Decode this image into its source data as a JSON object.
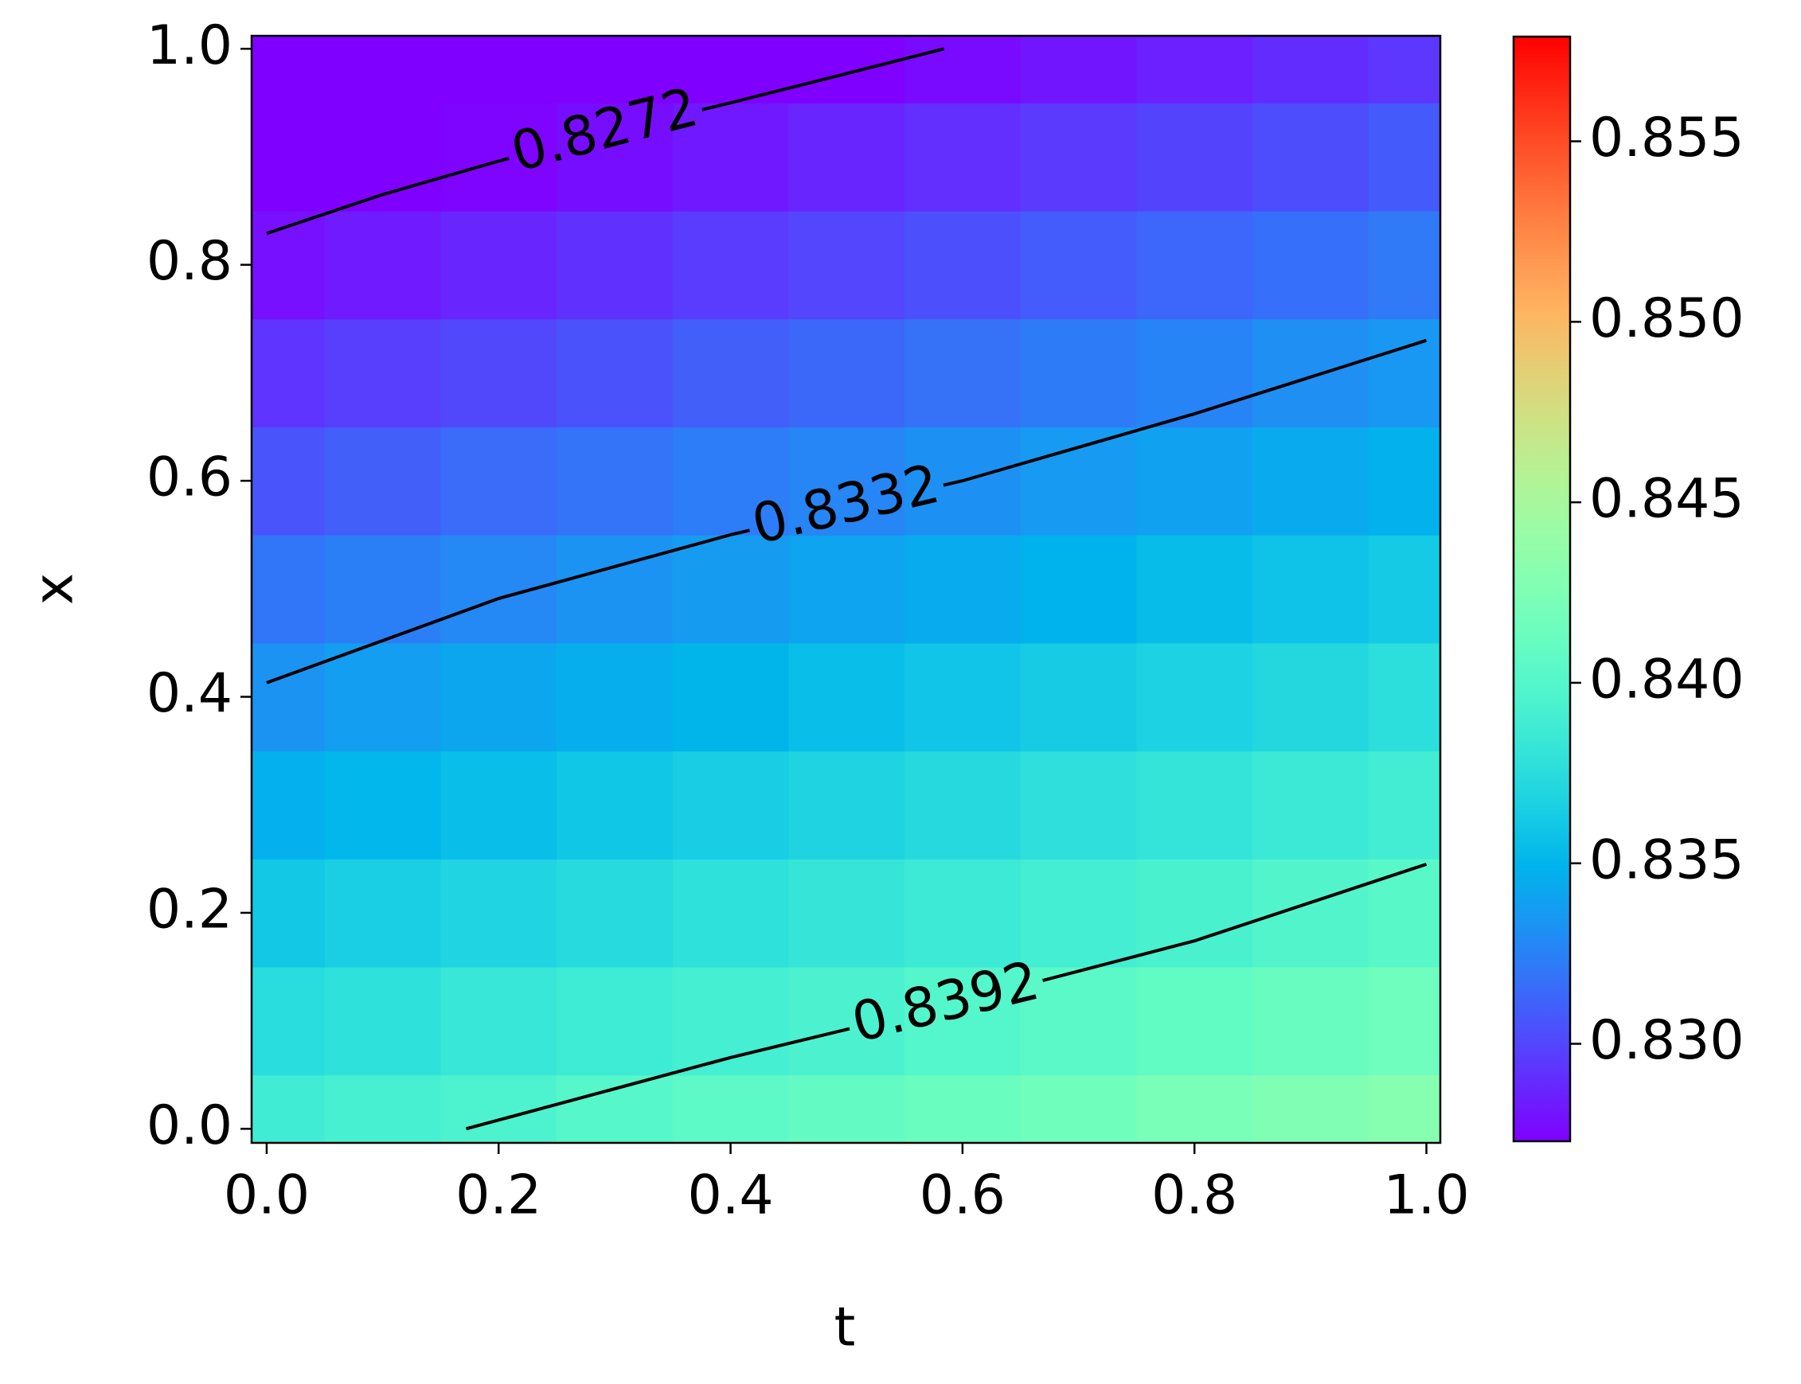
{
  "chart_data": {
    "type": "heatmap",
    "x_label": "t",
    "y_label": "x",
    "colormap": "rainbow",
    "x": [
      0,
      0.1,
      0.2,
      0.3,
      0.4,
      0.5,
      0.6,
      0.7,
      0.8,
      0.9,
      1.0
    ],
    "y": [
      0,
      0.1,
      0.2,
      0.3,
      0.4,
      0.5,
      0.6,
      0.7,
      0.8,
      0.9,
      1.0
    ],
    "values": [
      [
        0.8388,
        0.8392,
        0.8396,
        0.8401,
        0.8405,
        0.8409,
        0.8413,
        0.8417,
        0.8422,
        0.8426,
        0.843
      ],
      [
        0.8374,
        0.8378,
        0.8383,
        0.8387,
        0.8391,
        0.8395,
        0.84,
        0.8404,
        0.8408,
        0.8412,
        0.8416
      ],
      [
        0.8361,
        0.8365,
        0.8369,
        0.8373,
        0.8378,
        0.8382,
        0.8386,
        0.839,
        0.8394,
        0.8399,
        0.8403
      ],
      [
        0.8347,
        0.8351,
        0.8355,
        0.836,
        0.8364,
        0.8368,
        0.8372,
        0.8377,
        0.8381,
        0.8385,
        0.8389
      ],
      [
        0.8333,
        0.8338,
        0.8342,
        0.8346,
        0.835,
        0.8355,
        0.8359,
        0.8363,
        0.8367,
        0.8371,
        0.8376
      ],
      [
        0.832,
        0.8324,
        0.8328,
        0.8333,
        0.8337,
        0.8341,
        0.8345,
        0.8349,
        0.8354,
        0.8358,
        0.8362
      ],
      [
        0.8306,
        0.831,
        0.8315,
        0.8319,
        0.8323,
        0.8327,
        0.8332,
        0.8336,
        0.834,
        0.8344,
        0.8348
      ],
      [
        0.8293,
        0.8297,
        0.8301,
        0.8305,
        0.831,
        0.8314,
        0.8318,
        0.8322,
        0.8326,
        0.8331,
        0.8335
      ],
      [
        0.8279,
        0.8283,
        0.8287,
        0.8292,
        0.8296,
        0.83,
        0.8304,
        0.8309,
        0.8313,
        0.8317,
        0.8321
      ],
      [
        0.8265,
        0.827,
        0.8274,
        0.8278,
        0.8282,
        0.8287,
        0.8291,
        0.8295,
        0.8299,
        0.8303,
        0.8308
      ],
      [
        0.8252,
        0.8256,
        0.826,
        0.8264,
        0.8269,
        0.8273,
        0.8277,
        0.8281,
        0.8285,
        0.829,
        0.8294
      ]
    ],
    "clim": [
      0.8273,
      0.8579
    ],
    "cticks": [
      {
        "value": 0.83,
        "label": "0.830"
      },
      {
        "value": 0.835,
        "label": "0.835"
      },
      {
        "value": 0.84,
        "label": "0.840"
      },
      {
        "value": 0.845,
        "label": "0.845"
      },
      {
        "value": 0.85,
        "label": "0.850"
      },
      {
        "value": 0.855,
        "label": "0.855"
      }
    ],
    "xlim": [
      -0.013,
      1.012
    ],
    "ylim": [
      -0.013,
      1.012
    ],
    "xticks": [
      {
        "value": 0,
        "label": "0.0"
      },
      {
        "value": 0.2,
        "label": "0.2"
      },
      {
        "value": 0.4,
        "label": "0.4"
      },
      {
        "value": 0.6,
        "label": "0.6"
      },
      {
        "value": 0.8,
        "label": "0.8"
      },
      {
        "value": 1,
        "label": "1.0"
      }
    ],
    "yticks": [
      {
        "value": 0,
        "label": "0.0"
      },
      {
        "value": 0.2,
        "label": "0.2"
      },
      {
        "value": 0.4,
        "label": "0.4"
      },
      {
        "value": 0.6,
        "label": "0.6"
      },
      {
        "value": 0.8,
        "label": "0.8"
      },
      {
        "value": 1,
        "label": "1.0"
      }
    ],
    "contours": [
      {
        "level": 0.8272,
        "color": "#000000",
        "x": [
          0,
          0.1,
          0.2,
          0.3,
          0.4,
          0.5,
          0.584
        ],
        "y": [
          0.829,
          0.865,
          0.896,
          0.924,
          0.95,
          0.977,
          1.0
        ]
      },
      {
        "level": 0.8332,
        "color": "#000000",
        "x": [
          0,
          0.2,
          0.4,
          0.6,
          0.8,
          1.0
        ],
        "y": [
          0.413,
          0.491,
          0.55,
          0.6,
          0.662,
          0.73
        ]
      },
      {
        "level": 0.8392,
        "color": "#000000",
        "x": [
          0.172,
          0.4,
          0.6,
          0.8,
          1.0
        ],
        "y": [
          0,
          0.066,
          0.118,
          0.174,
          0.245
        ]
      }
    ]
  }
}
